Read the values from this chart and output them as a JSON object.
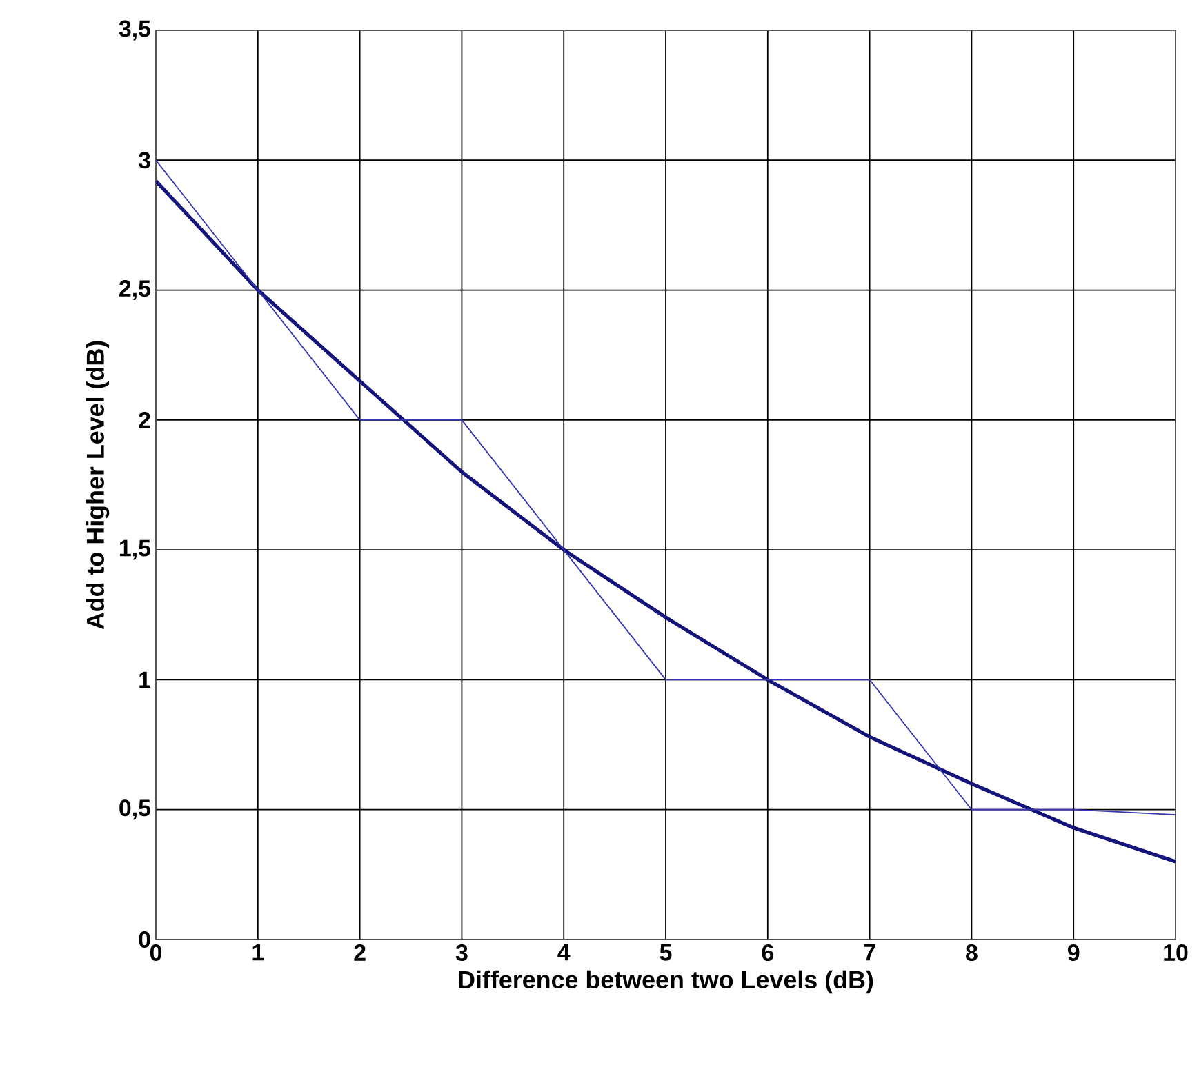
{
  "chart_data": {
    "type": "line",
    "xlabel": "Difference between two Levels (dB)",
    "ylabel": "Add to Higher Level (dB)",
    "x": [
      0,
      1,
      2,
      3,
      4,
      5,
      6,
      7,
      8,
      9,
      10
    ],
    "series": [
      {
        "color": "#14147a",
        "values": [
          2.92,
          2.5,
          2.15,
          1.8,
          1.5,
          1.24,
          1.0,
          0.78,
          0.6,
          0.43,
          0.3
        ]
      },
      {
        "color": "#3535b0",
        "values": [
          3.0,
          2.5,
          2.0,
          2.0,
          1.5,
          1.0,
          1.0,
          1.0,
          0.5,
          0.5,
          0.48
        ]
      }
    ],
    "xlim": [
      0,
      10
    ],
    "ylim": [
      0,
      3.5
    ],
    "xticks": [
      0,
      1,
      2,
      3,
      4,
      5,
      6,
      7,
      8,
      9,
      10
    ],
    "yticks": [
      0,
      {
        "value": 0.5,
        "label": "0,5"
      },
      1,
      {
        "value": 1.5,
        "label": "1,5"
      },
      2,
      {
        "value": 2.5,
        "label": "2,5"
      },
      3,
      {
        "value": 3.5,
        "label": "3,5"
      }
    ],
    "grid": true
  }
}
